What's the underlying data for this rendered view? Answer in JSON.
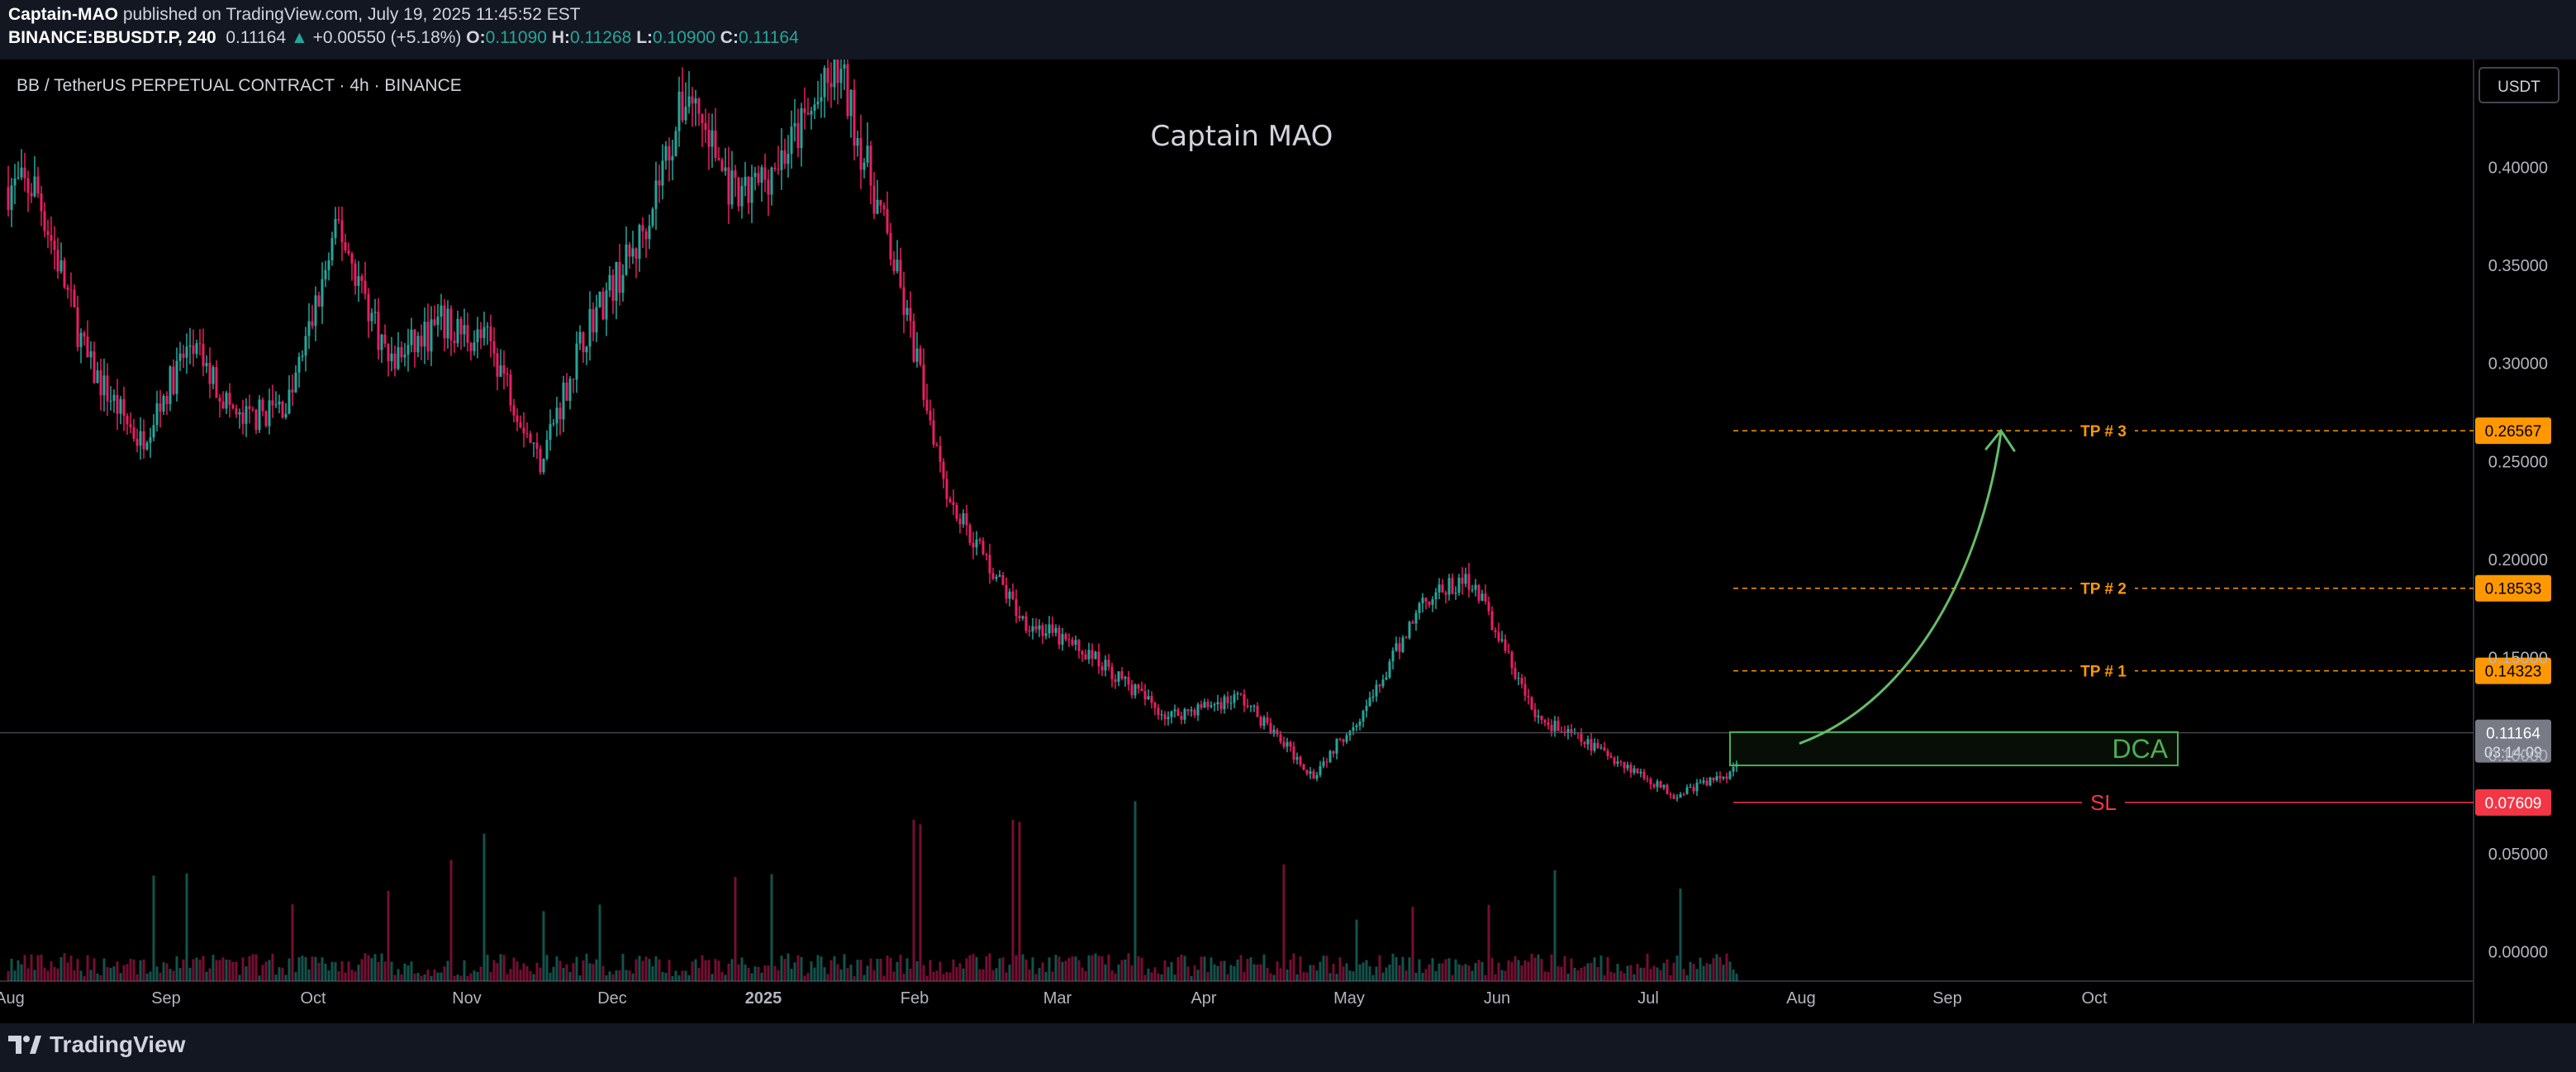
{
  "header": {
    "author": "Captain-MAO",
    "published_text": "published on TradingView.com, July 19, 2025 11:45:52 EST",
    "symbol": "BINANCE:BBUSDT.P, 240",
    "last_price": "0.11164",
    "change": "+0.00550 (+5.18%)",
    "open_label": "O:",
    "open": "0.11090",
    "high_label": "H:",
    "high": "0.11268",
    "low_label": "L:",
    "low": "0.10900",
    "close_label": "C:",
    "close": "0.11164"
  },
  "legend_title": "BB / TetherUS PERPETUAL CONTRACT · 4h · BINANCE",
  "watermark": "Captain MAO",
  "currency_button": "USDT",
  "footer": {
    "brand": "TradingView"
  },
  "colors": {
    "up": "#26a69a",
    "down": "#e91e63",
    "tp": "#ff9800",
    "sl": "#f23645",
    "dca": "#4caf50",
    "arrow": "#66bb6a",
    "axis_text": "#b2b5be"
  },
  "chart_data": {
    "type": "candlestick",
    "interval": "4h",
    "y_axis": {
      "ticks": [
        "0.40000",
        "0.35000",
        "0.30000",
        "0.25000",
        "0.20000",
        "0.15000",
        "0.10000",
        "0.05000",
        "0.00000"
      ],
      "range": [
        -0.015,
        0.455
      ]
    },
    "x_axis": {
      "ticks": [
        "Aug",
        "Sep",
        "Oct",
        "Nov",
        "Dec",
        "2025",
        "Feb",
        "Mar",
        "Apr",
        "May",
        "Jun",
        "Jul",
        "Aug",
        "Sep",
        "Oct"
      ],
      "bold_ticks": [
        "2025"
      ]
    },
    "price_path": [
      [
        "Aug",
        0.39
      ],
      [
        "Aug",
        0.3
      ],
      [
        "Aug",
        0.26
      ],
      [
        "Sep",
        0.31
      ],
      [
        "Sep",
        0.27
      ],
      [
        "Sep",
        0.28
      ],
      [
        "Oct",
        0.37
      ],
      [
        "Oct",
        0.3
      ],
      [
        "Oct",
        0.32
      ],
      [
        "Nov",
        0.31
      ],
      [
        "Nov",
        0.25
      ],
      [
        "Nov",
        0.32
      ],
      [
        "Dec",
        0.36
      ],
      [
        "Dec",
        0.44
      ],
      [
        "Dec",
        0.38
      ],
      [
        "2025",
        0.41
      ],
      [
        "2025",
        0.45
      ],
      [
        "2025",
        0.36
      ],
      [
        "Feb",
        0.23
      ],
      [
        "Feb",
        0.17
      ],
      [
        "Mar",
        0.15
      ],
      [
        "Mar",
        0.12
      ],
      [
        "Apr",
        0.13
      ],
      [
        "Apr",
        0.09
      ],
      [
        "May",
        0.13
      ],
      [
        "May",
        0.18
      ],
      [
        "May",
        0.19
      ],
      [
        "Jun",
        0.12
      ],
      [
        "Jun",
        0.1
      ],
      [
        "Jul",
        0.08
      ],
      [
        "Jul",
        0.09
      ],
      [
        "Jul",
        0.11164
      ]
    ],
    "volume_scale_note": "volume bars at bottom, relative heights",
    "levels": [
      {
        "name": "TP # 3",
        "price": 0.26567,
        "label": "0.26567",
        "kind": "tp"
      },
      {
        "name": "TP # 2",
        "price": 0.18533,
        "label": "0.18533",
        "kind": "tp"
      },
      {
        "name": "TP # 1",
        "price": 0.14323,
        "label": "0.14323",
        "kind": "tp"
      },
      {
        "name": "SL",
        "price": 0.07609,
        "label": "0.07609",
        "kind": "sl"
      }
    ],
    "current_price": {
      "price": 0.11164,
      "label": "0.11164",
      "countdown": "03:14:09"
    },
    "dca_zone": {
      "label": "DCA",
      "top": 0.112,
      "bottom": 0.095
    }
  }
}
